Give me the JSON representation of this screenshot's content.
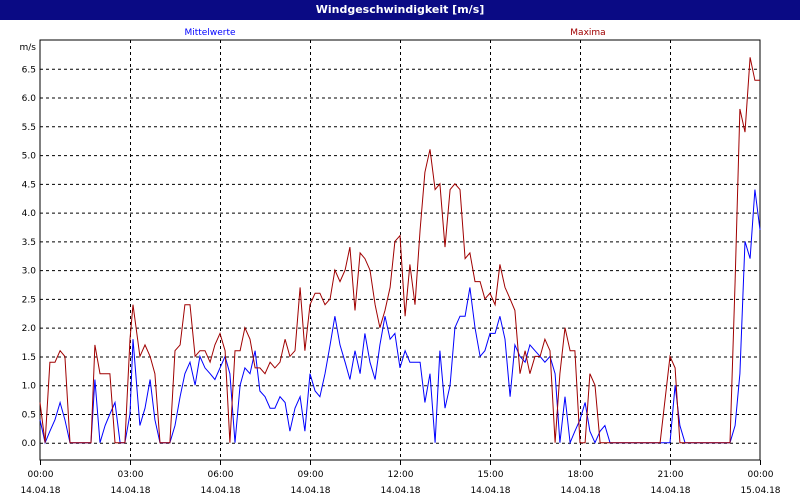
{
  "window": {
    "title": "Windgeschwindigkeit [m/s]"
  },
  "chart_data": {
    "type": "line",
    "title": "Windgeschwindigkeit [m/s]",
    "ylabel": "m/s",
    "ylim": [
      -0.3,
      7.0
    ],
    "xlim": [
      0,
      24
    ],
    "y_ticks": [
      "0.0",
      "0.5",
      "1.0",
      "1.5",
      "2.0",
      "2.5",
      "3.0",
      "3.5",
      "4.0",
      "4.5",
      "5.0",
      "5.5",
      "6.0",
      "6.5"
    ],
    "x_ticks": [
      {
        "x": 0,
        "time": "00:00",
        "date": "14.04.18"
      },
      {
        "x": 3,
        "time": "03:00",
        "date": "14.04.18"
      },
      {
        "x": 6,
        "time": "06:00",
        "date": "14.04.18"
      },
      {
        "x": 9,
        "time": "09:00",
        "date": "14.04.18"
      },
      {
        "x": 12,
        "time": "12:00",
        "date": "14.04.18"
      },
      {
        "x": 15,
        "time": "15:00",
        "date": "14.04.18"
      },
      {
        "x": 18,
        "time": "18:00",
        "date": "14.04.18"
      },
      {
        "x": 21,
        "time": "21:00",
        "date": "14.04.18"
      },
      {
        "x": 24,
        "time": "00:00",
        "date": "15.04.18"
      }
    ],
    "grid": true,
    "legend_placement": "top",
    "series": [
      {
        "name": "Mittelwerte",
        "color": "#0000ff",
        "points": [
          [
            0,
            0.4
          ],
          [
            0.17,
            0.0
          ],
          [
            0.33,
            0.2
          ],
          [
            0.5,
            0.4
          ],
          [
            0.67,
            0.7
          ],
          [
            0.83,
            0.4
          ],
          [
            1.0,
            0.0
          ],
          [
            1.2,
            0.0
          ],
          [
            1.5,
            0.0
          ],
          [
            1.7,
            0.0
          ],
          [
            1.83,
            1.1
          ],
          [
            2.0,
            0.0
          ],
          [
            2.17,
            0.3
          ],
          [
            2.33,
            0.5
          ],
          [
            2.5,
            0.7
          ],
          [
            2.67,
            0.0
          ],
          [
            2.83,
            0.0
          ],
          [
            3.0,
            0.5
          ],
          [
            3.1,
            1.8
          ],
          [
            3.33,
            0.3
          ],
          [
            3.5,
            0.6
          ],
          [
            3.67,
            1.1
          ],
          [
            3.83,
            0.4
          ],
          [
            4.0,
            0.0
          ],
          [
            4.17,
            0.0
          ],
          [
            4.33,
            0.0
          ],
          [
            4.5,
            0.3
          ],
          [
            4.67,
            0.8
          ],
          [
            4.83,
            1.2
          ],
          [
            5.0,
            1.4
          ],
          [
            5.17,
            1.0
          ],
          [
            5.33,
            1.5
          ],
          [
            5.5,
            1.3
          ],
          [
            5.67,
            1.2
          ],
          [
            5.83,
            1.1
          ],
          [
            6.0,
            1.3
          ],
          [
            6.17,
            1.5
          ],
          [
            6.33,
            1.2
          ],
          [
            6.5,
            0.0
          ],
          [
            6.67,
            1.0
          ],
          [
            6.83,
            1.3
          ],
          [
            7.0,
            1.2
          ],
          [
            7.17,
            1.6
          ],
          [
            7.33,
            0.9
          ],
          [
            7.5,
            0.8
          ],
          [
            7.67,
            0.6
          ],
          [
            7.83,
            0.6
          ],
          [
            8.0,
            0.8
          ],
          [
            8.17,
            0.7
          ],
          [
            8.33,
            0.2
          ],
          [
            8.5,
            0.6
          ],
          [
            8.67,
            0.8
          ],
          [
            8.83,
            0.2
          ],
          [
            9.0,
            1.2
          ],
          [
            9.17,
            0.9
          ],
          [
            9.33,
            0.8
          ],
          [
            9.5,
            1.2
          ],
          [
            9.67,
            1.7
          ],
          [
            9.83,
            2.2
          ],
          [
            10.0,
            1.7
          ],
          [
            10.17,
            1.4
          ],
          [
            10.33,
            1.1
          ],
          [
            10.5,
            1.6
          ],
          [
            10.67,
            1.2
          ],
          [
            10.83,
            1.9
          ],
          [
            11.0,
            1.4
          ],
          [
            11.17,
            1.1
          ],
          [
            11.33,
            1.7
          ],
          [
            11.5,
            2.2
          ],
          [
            11.67,
            1.8
          ],
          [
            11.83,
            1.9
          ],
          [
            12.0,
            1.3
          ],
          [
            12.17,
            1.6
          ],
          [
            12.33,
            1.4
          ],
          [
            12.5,
            1.4
          ],
          [
            12.67,
            1.4
          ],
          [
            12.83,
            0.7
          ],
          [
            13.0,
            1.2
          ],
          [
            13.17,
            0.0
          ],
          [
            13.33,
            1.6
          ],
          [
            13.5,
            0.6
          ],
          [
            13.67,
            1.0
          ],
          [
            13.83,
            2.0
          ],
          [
            14.0,
            2.2
          ],
          [
            14.17,
            2.2
          ],
          [
            14.33,
            2.7
          ],
          [
            14.5,
            2.0
          ],
          [
            14.67,
            1.5
          ],
          [
            14.83,
            1.6
          ],
          [
            15.0,
            1.9
          ],
          [
            15.17,
            1.9
          ],
          [
            15.33,
            2.2
          ],
          [
            15.5,
            1.8
          ],
          [
            15.67,
            0.8
          ],
          [
            15.83,
            1.7
          ],
          [
            16.0,
            1.5
          ],
          [
            16.17,
            1.4
          ],
          [
            16.33,
            1.7
          ],
          [
            16.5,
            1.6
          ],
          [
            16.67,
            1.5
          ],
          [
            16.83,
            1.4
          ],
          [
            17.0,
            1.5
          ],
          [
            17.17,
            1.2
          ],
          [
            17.33,
            0.0
          ],
          [
            17.5,
            0.8
          ],
          [
            17.67,
            0.0
          ],
          [
            17.83,
            0.2
          ],
          [
            18.0,
            0.4
          ],
          [
            18.17,
            0.7
          ],
          [
            18.33,
            0.2
          ],
          [
            18.5,
            0.0
          ],
          [
            18.67,
            0.2
          ],
          [
            18.83,
            0.3
          ],
          [
            19.0,
            0.0
          ],
          [
            19.33,
            0.0
          ],
          [
            19.67,
            0.0
          ],
          [
            20.0,
            0.0
          ],
          [
            20.33,
            0.0
          ],
          [
            20.67,
            0.0
          ],
          [
            21.0,
            0.0
          ],
          [
            21.17,
            1.0
          ],
          [
            21.33,
            0.3
          ],
          [
            21.5,
            0.0
          ],
          [
            22.0,
            0.0
          ],
          [
            22.5,
            0.0
          ],
          [
            23.0,
            0.0
          ],
          [
            23.17,
            0.3
          ],
          [
            23.33,
            1.2
          ],
          [
            23.5,
            3.5
          ],
          [
            23.67,
            3.2
          ],
          [
            23.83,
            4.4
          ],
          [
            24.0,
            3.7
          ]
        ]
      },
      {
        "name": "Maxima",
        "color": "#a00000",
        "points": [
          [
            0,
            0.7
          ],
          [
            0.17,
            0.0
          ],
          [
            0.33,
            1.4
          ],
          [
            0.5,
            1.4
          ],
          [
            0.67,
            1.6
          ],
          [
            0.83,
            1.5
          ],
          [
            1.0,
            0.0
          ],
          [
            1.2,
            0.0
          ],
          [
            1.5,
            0.0
          ],
          [
            1.7,
            0.0
          ],
          [
            1.83,
            1.7
          ],
          [
            2.0,
            1.2
          ],
          [
            2.17,
            1.2
          ],
          [
            2.33,
            1.2
          ],
          [
            2.5,
            0.0
          ],
          [
            2.67,
            0.0
          ],
          [
            2.83,
            0.0
          ],
          [
            3.0,
            1.8
          ],
          [
            3.1,
            2.4
          ],
          [
            3.33,
            1.5
          ],
          [
            3.5,
            1.7
          ],
          [
            3.67,
            1.5
          ],
          [
            3.83,
            1.2
          ],
          [
            4.0,
            0.0
          ],
          [
            4.17,
            0.0
          ],
          [
            4.33,
            0.0
          ],
          [
            4.5,
            1.6
          ],
          [
            4.67,
            1.7
          ],
          [
            4.83,
            2.4
          ],
          [
            5.0,
            2.4
          ],
          [
            5.17,
            1.5
          ],
          [
            5.33,
            1.6
          ],
          [
            5.5,
            1.6
          ],
          [
            5.67,
            1.4
          ],
          [
            5.83,
            1.7
          ],
          [
            6.0,
            1.9
          ],
          [
            6.17,
            1.6
          ],
          [
            6.33,
            0.0
          ],
          [
            6.5,
            1.6
          ],
          [
            6.67,
            1.6
          ],
          [
            6.83,
            2.0
          ],
          [
            7.0,
            1.8
          ],
          [
            7.17,
            1.3
          ],
          [
            7.33,
            1.3
          ],
          [
            7.5,
            1.2
          ],
          [
            7.67,
            1.4
          ],
          [
            7.83,
            1.3
          ],
          [
            8.0,
            1.4
          ],
          [
            8.17,
            1.8
          ],
          [
            8.33,
            1.5
          ],
          [
            8.5,
            1.6
          ],
          [
            8.67,
            2.7
          ],
          [
            8.83,
            1.6
          ],
          [
            9.0,
            2.4
          ],
          [
            9.17,
            2.6
          ],
          [
            9.33,
            2.6
          ],
          [
            9.5,
            2.4
          ],
          [
            9.67,
            2.5
          ],
          [
            9.83,
            3.0
          ],
          [
            10.0,
            2.8
          ],
          [
            10.17,
            3.0
          ],
          [
            10.33,
            3.4
          ],
          [
            10.5,
            2.3
          ],
          [
            10.67,
            3.3
          ],
          [
            10.83,
            3.2
          ],
          [
            11.0,
            3.0
          ],
          [
            11.17,
            2.4
          ],
          [
            11.33,
            2.0
          ],
          [
            11.5,
            2.3
          ],
          [
            11.67,
            2.7
          ],
          [
            11.83,
            3.5
          ],
          [
            12.0,
            3.6
          ],
          [
            12.17,
            2.2
          ],
          [
            12.33,
            3.1
          ],
          [
            12.5,
            2.4
          ],
          [
            12.67,
            3.7
          ],
          [
            12.83,
            4.7
          ],
          [
            13.0,
            5.1
          ],
          [
            13.17,
            4.4
          ],
          [
            13.33,
            4.5
          ],
          [
            13.5,
            3.4
          ],
          [
            13.67,
            4.4
          ],
          [
            13.83,
            4.5
          ],
          [
            14.0,
            4.4
          ],
          [
            14.17,
            3.2
          ],
          [
            14.33,
            3.3
          ],
          [
            14.5,
            2.8
          ],
          [
            14.67,
            2.8
          ],
          [
            14.83,
            2.5
          ],
          [
            15.0,
            2.6
          ],
          [
            15.17,
            2.4
          ],
          [
            15.33,
            3.1
          ],
          [
            15.5,
            2.7
          ],
          [
            15.67,
            2.5
          ],
          [
            15.83,
            2.3
          ],
          [
            16.0,
            1.2
          ],
          [
            16.17,
            1.6
          ],
          [
            16.33,
            1.2
          ],
          [
            16.5,
            1.5
          ],
          [
            16.67,
            1.5
          ],
          [
            16.83,
            1.8
          ],
          [
            17.0,
            1.6
          ],
          [
            17.17,
            0.0
          ],
          [
            17.33,
            1.2
          ],
          [
            17.5,
            2.0
          ],
          [
            17.67,
            1.6
          ],
          [
            17.83,
            1.6
          ],
          [
            18.0,
            0.0
          ],
          [
            18.17,
            0.0
          ],
          [
            18.33,
            1.2
          ],
          [
            18.5,
            1.0
          ],
          [
            18.67,
            0.0
          ],
          [
            18.83,
            0.0
          ],
          [
            19.0,
            0.0
          ],
          [
            19.33,
            0.0
          ],
          [
            19.67,
            0.0
          ],
          [
            20.0,
            0.0
          ],
          [
            20.33,
            0.0
          ],
          [
            20.67,
            0.0
          ],
          [
            21.0,
            1.5
          ],
          [
            21.17,
            1.3
          ],
          [
            21.33,
            0.0
          ],
          [
            21.5,
            0.0
          ],
          [
            22.0,
            0.0
          ],
          [
            22.5,
            0.0
          ],
          [
            23.0,
            0.0
          ],
          [
            23.17,
            2.8
          ],
          [
            23.33,
            5.8
          ],
          [
            23.5,
            5.4
          ],
          [
            23.67,
            6.7
          ],
          [
            23.83,
            6.3
          ],
          [
            24.0,
            6.3
          ]
        ]
      }
    ]
  }
}
